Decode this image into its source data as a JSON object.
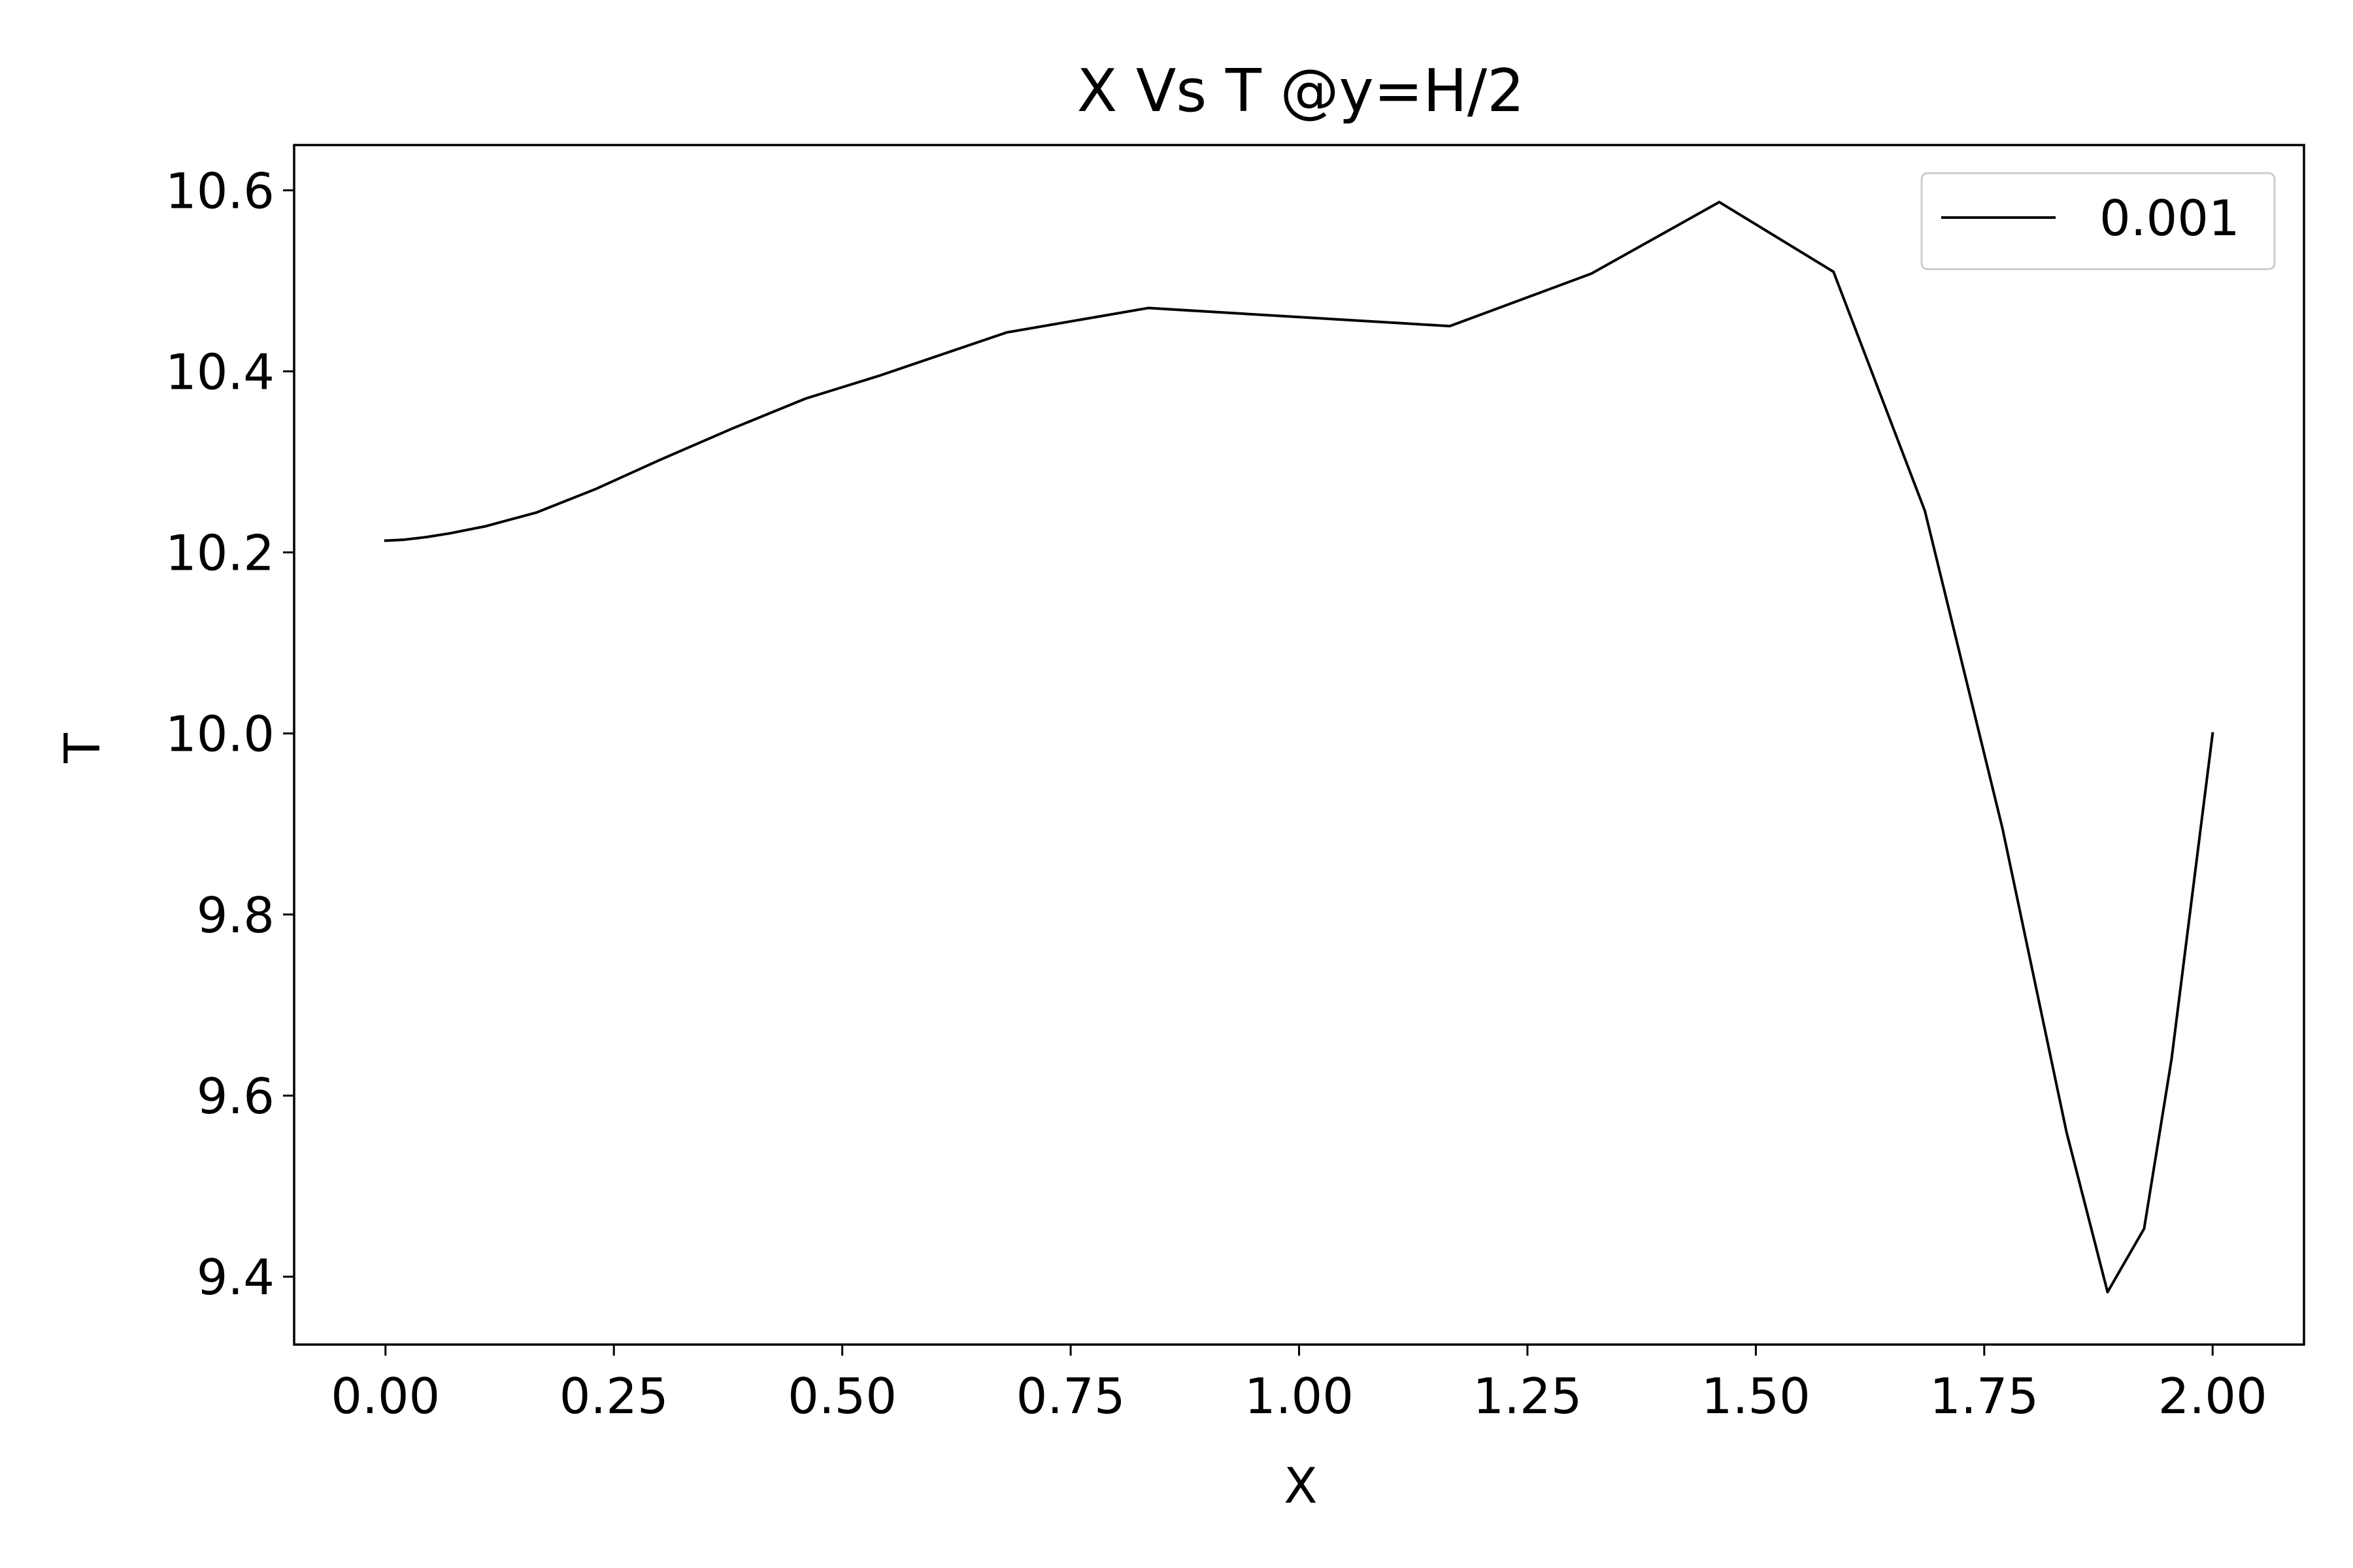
{
  "chart_data": {
    "type": "line",
    "title": "X Vs T @y=H/2",
    "xlabel": "X",
    "ylabel": "T",
    "xlim": [
      -0.1,
      2.1
    ],
    "ylim": [
      9.325,
      10.65
    ],
    "xticks": [
      0.0,
      0.25,
      0.5,
      0.75,
      1.0,
      1.25,
      1.5,
      1.75,
      2.0
    ],
    "xtick_labels": [
      "0.00",
      "0.25",
      "0.50",
      "0.75",
      "1.00",
      "1.25",
      "1.50",
      "1.75",
      "2.00"
    ],
    "yticks": [
      9.4,
      9.6,
      9.8,
      10.0,
      10.2,
      10.4,
      10.6
    ],
    "ytick_labels": [
      "9.4",
      "9.6",
      "9.8",
      "10.0",
      "10.2",
      "10.4",
      "10.6"
    ],
    "grid": false,
    "legend": {
      "position": "upper right",
      "entries": [
        "0.001"
      ]
    },
    "series": [
      {
        "name": "0.001",
        "color": "#000000",
        "x": [
          0.0,
          0.02,
          0.045,
          0.07,
          0.11,
          0.165,
          0.23,
          0.3,
          0.38,
          0.46,
          0.54,
          0.68,
          0.835,
          1.165,
          1.32,
          1.46,
          1.585,
          1.685,
          1.77,
          1.84,
          1.885,
          1.925,
          1.955,
          2.0
        ],
        "y": [
          10.213,
          10.214,
          10.217,
          10.221,
          10.229,
          10.244,
          10.27,
          10.302,
          10.337,
          10.37,
          10.395,
          10.443,
          10.47,
          10.45,
          10.508,
          10.587,
          10.51,
          10.246,
          9.895,
          9.56,
          9.383,
          9.453,
          9.64,
          10.0
        ]
      }
    ]
  }
}
